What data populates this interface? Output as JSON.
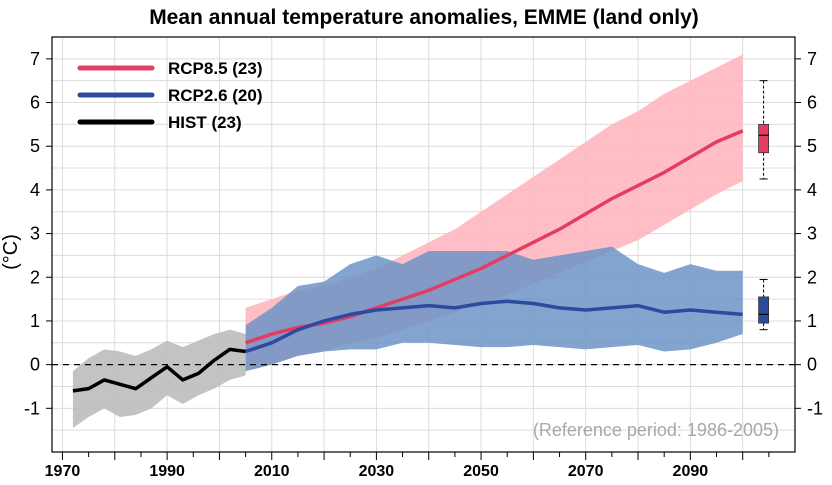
{
  "chart_data": {
    "type": "line",
    "title": "Mean annual temperature anomalies, EMME (land only)",
    "xlabel": "",
    "ylabel": "(°C)",
    "xlim": [
      1968,
      2110
    ],
    "ylim": [
      -2,
      7.5
    ],
    "xticks": [
      "1970",
      "1990",
      "2010",
      "2030",
      "2050",
      "2070",
      "2090"
    ],
    "yticks": [
      "-1",
      "0",
      "1",
      "2",
      "3",
      "4",
      "5",
      "6",
      "7"
    ],
    "grid": true,
    "legend_position": "top-left",
    "annotation": "(Reference period: 1986-2005)",
    "reference_line": 0,
    "series": [
      {
        "name": "RCP8.5 (23)",
        "color": "#e23d62",
        "band_color": "#ffb3bb",
        "x": [
          2005,
          2010,
          2015,
          2020,
          2025,
          2030,
          2035,
          2040,
          2045,
          2050,
          2055,
          2060,
          2065,
          2070,
          2075,
          2080,
          2085,
          2090,
          2095,
          2100
        ],
        "values": [
          0.5,
          0.7,
          0.85,
          0.95,
          1.1,
          1.3,
          1.5,
          1.7,
          1.95,
          2.2,
          2.5,
          2.8,
          3.1,
          3.45,
          3.8,
          4.1,
          4.4,
          4.75,
          5.1,
          5.35
        ],
        "lower": [
          -0.15,
          0.0,
          0.2,
          0.3,
          0.5,
          0.6,
          0.8,
          1.0,
          1.2,
          1.4,
          1.6,
          1.85,
          2.1,
          2.35,
          2.6,
          2.85,
          3.2,
          3.55,
          3.9,
          4.2
        ],
        "upper": [
          1.3,
          1.5,
          1.7,
          1.8,
          2.0,
          2.2,
          2.5,
          2.8,
          3.1,
          3.5,
          3.9,
          4.3,
          4.7,
          5.1,
          5.5,
          5.8,
          6.2,
          6.5,
          6.8,
          7.1
        ]
      },
      {
        "name": "RCP2.6 (20)",
        "color": "#2c4aa0",
        "band_color": "#6d94c5",
        "x": [
          2005,
          2010,
          2015,
          2020,
          2025,
          2030,
          2035,
          2040,
          2045,
          2050,
          2055,
          2060,
          2065,
          2070,
          2075,
          2080,
          2085,
          2090,
          2095,
          2100
        ],
        "values": [
          0.3,
          0.5,
          0.8,
          1.0,
          1.15,
          1.25,
          1.3,
          1.35,
          1.3,
          1.4,
          1.45,
          1.4,
          1.3,
          1.25,
          1.3,
          1.35,
          1.2,
          1.25,
          1.2,
          1.15
        ],
        "lower": [
          -0.15,
          0.0,
          0.2,
          0.3,
          0.35,
          0.35,
          0.5,
          0.5,
          0.45,
          0.4,
          0.4,
          0.45,
          0.4,
          0.35,
          0.4,
          0.45,
          0.3,
          0.35,
          0.5,
          0.7
        ],
        "upper": [
          0.9,
          1.3,
          1.8,
          1.9,
          2.3,
          2.5,
          2.3,
          2.6,
          2.6,
          2.6,
          2.6,
          2.4,
          2.5,
          2.6,
          2.7,
          2.3,
          2.1,
          2.3,
          2.15,
          2.15
        ]
      },
      {
        "name": "HIST (23)",
        "color": "#000000",
        "band_color": "#bdbdbd",
        "x": [
          1972,
          1975,
          1978,
          1981,
          1984,
          1987,
          1990,
          1993,
          1996,
          1999,
          2002,
          2005
        ],
        "values": [
          -0.6,
          -0.55,
          -0.35,
          -0.45,
          -0.55,
          -0.3,
          -0.05,
          -0.35,
          -0.2,
          0.1,
          0.35,
          0.3
        ],
        "lower": [
          -1.45,
          -1.2,
          -1.0,
          -1.2,
          -1.15,
          -1.0,
          -0.7,
          -0.9,
          -0.7,
          -0.55,
          -0.35,
          -0.25
        ],
        "upper": [
          -0.15,
          0.15,
          0.35,
          0.3,
          0.2,
          0.35,
          0.55,
          0.4,
          0.55,
          0.7,
          0.8,
          0.7
        ]
      }
    ],
    "boxplots": [
      {
        "name": "RCP8.5",
        "color": "#e23d62",
        "min": 4.25,
        "q1": 4.85,
        "median": 5.25,
        "q3": 5.5,
        "max": 6.5
      },
      {
        "name": "RCP2.6",
        "color": "#2c4aa0",
        "min": 0.8,
        "q1": 0.95,
        "median": 1.15,
        "q3": 1.55,
        "max": 1.95
      }
    ]
  }
}
